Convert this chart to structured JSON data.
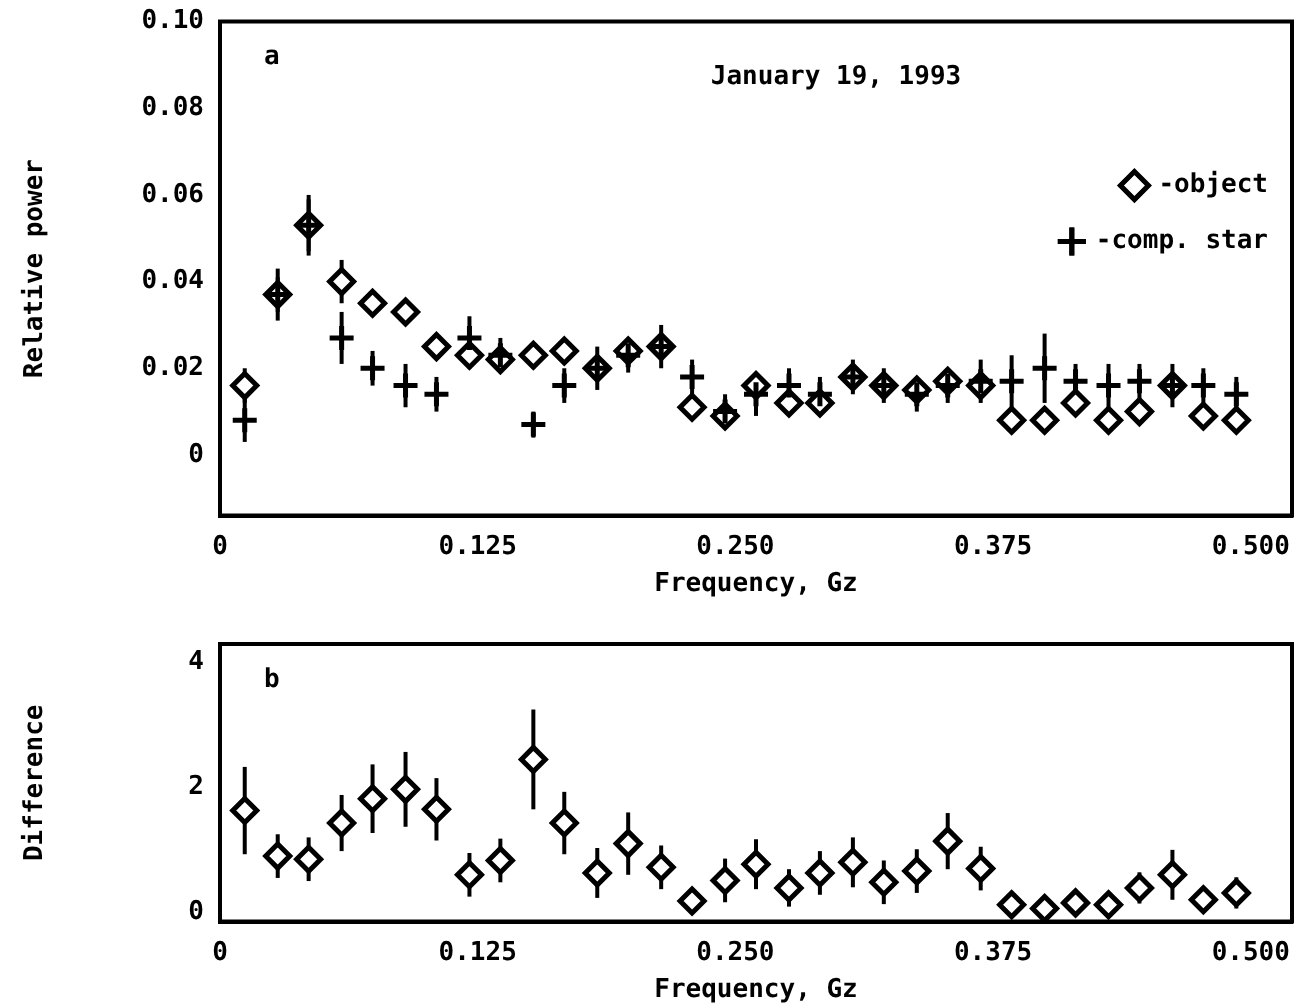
{
  "chart_data": [
    {
      "type": "scatter",
      "title": "January 19, 1993",
      "xlabel": "Frequency, Gz",
      "ylabel": "Relative power",
      "annotations": [
        "a"
      ],
      "legend": "top right",
      "grid": false,
      "x": [
        0.012,
        0.028,
        0.043,
        0.059,
        0.074,
        0.09,
        0.105,
        0.121,
        0.136,
        0.152,
        0.167,
        0.183,
        0.198,
        0.214,
        0.229,
        0.245,
        0.26,
        0.276,
        0.291,
        0.307,
        0.322,
        0.338,
        0.353,
        0.369,
        0.384,
        0.4,
        0.415,
        0.431,
        0.446,
        0.462,
        0.477,
        0.493
      ],
      "xlim": [
        0,
        0.52
      ],
      "xticks": [
        0,
        {
          "value": 0.125,
          "label": "0.125"
        },
        {
          "value": 0.25,
          "label": "0.250"
        },
        {
          "value": 0.375,
          "label": "0.375"
        },
        {
          "value": 0.5,
          "label": "0.500"
        }
      ],
      "ylim": [
        -0.014,
        0.1
      ],
      "yticks": [
        0,
        0.02,
        0.04,
        0.06,
        0.08,
        {
          "value": 0.1,
          "label": "0.10"
        }
      ],
      "series": [
        {
          "name": "-object",
          "color": "#000000",
          "marker": "diamond",
          "values": [
            0.016,
            0.037,
            0.053,
            0.04,
            0.035,
            0.033,
            0.025,
            0.023,
            0.022,
            0.023,
            0.024,
            0.02,
            0.024,
            0.025,
            0.011,
            0.009,
            0.016,
            0.012,
            0.012,
            0.018,
            0.016,
            0.015,
            0.017,
            0.016,
            0.008,
            0.008,
            0.012,
            0.008,
            0.01,
            0.016,
            0.009,
            0.008
          ],
          "errors": [
            0.004,
            0.004,
            0.006,
            0.005,
            0.003,
            0.003,
            0.003,
            0.003,
            0.003,
            0.003,
            0.003,
            0.003,
            0.003,
            0.003,
            0.003,
            0.003,
            0.003,
            0.003,
            0.003,
            0.003,
            0.003,
            0.003,
            0.003,
            0.003,
            0.002,
            0.002,
            0.002,
            0.002,
            0.002,
            0.002,
            0.002,
            0.002
          ]
        },
        {
          "name": "-comp. star",
          "color": "#000000",
          "marker": "cross",
          "values": [
            0.008,
            0.037,
            0.053,
            0.027,
            0.02,
            0.016,
            0.014,
            0.027,
            0.023,
            0.007,
            0.016,
            0.02,
            0.023,
            0.025,
            0.018,
            0.01,
            0.014,
            0.016,
            0.014,
            0.018,
            0.016,
            0.014,
            0.016,
            0.017,
            0.017,
            0.02,
            0.017,
            0.016,
            0.017,
            0.016,
            0.016,
            0.014
          ],
          "errors": [
            0.005,
            0.006,
            0.007,
            0.006,
            0.004,
            0.005,
            0.004,
            0.005,
            0.004,
            0.003,
            0.004,
            0.005,
            0.004,
            0.005,
            0.004,
            0.004,
            0.005,
            0.004,
            0.004,
            0.004,
            0.004,
            0.004,
            0.004,
            0.005,
            0.006,
            0.008,
            0.004,
            0.005,
            0.004,
            0.005,
            0.004,
            0.004
          ]
        }
      ]
    },
    {
      "type": "scatter",
      "xlabel": "Frequency, Gz",
      "ylabel": "Difference",
      "annotations": [
        "b"
      ],
      "grid": false,
      "marker": "diamond",
      "x": [
        0.012,
        0.028,
        0.043,
        0.059,
        0.074,
        0.09,
        0.105,
        0.121,
        0.136,
        0.152,
        0.167,
        0.183,
        0.198,
        0.214,
        0.229,
        0.245,
        0.26,
        0.276,
        0.291,
        0.307,
        0.322,
        0.338,
        0.353,
        0.369,
        0.384,
        0.4,
        0.415,
        0.431,
        0.446,
        0.462,
        0.477,
        0.493
      ],
      "xlim": [
        0,
        0.52
      ],
      "xticks": [
        0,
        {
          "value": 0.125,
          "label": "0.125"
        },
        {
          "value": 0.25,
          "label": "0.250"
        },
        {
          "value": 0.375,
          "label": "0.375"
        },
        {
          "value": 0.5,
          "label": "0.500"
        }
      ],
      "ylim": [
        -0.15,
        4.3
      ],
      "yticks": [
        0,
        2,
        4
      ],
      "series": [
        {
          "color": "#000000",
          "values": [
            1.63,
            0.9,
            0.85,
            1.43,
            1.82,
            1.97,
            1.65,
            0.6,
            0.83,
            2.45,
            1.43,
            0.63,
            1.1,
            0.72,
            0.18,
            0.51,
            0.77,
            0.39,
            0.63,
            0.8,
            0.48,
            0.66,
            1.14,
            0.7,
            0.12,
            0.06,
            0.15,
            0.12,
            0.39,
            0.6,
            0.2,
            0.31
          ],
          "errors": [
            0.7,
            0.35,
            0.35,
            0.45,
            0.55,
            0.6,
            0.5,
            0.35,
            0.35,
            0.8,
            0.5,
            0.4,
            0.5,
            0.35,
            0.2,
            0.35,
            0.4,
            0.3,
            0.35,
            0.4,
            0.35,
            0.35,
            0.45,
            0.35,
            0.2,
            0.15,
            0.2,
            0.2,
            0.25,
            0.4,
            0.2,
            0.25
          ]
        }
      ]
    }
  ]
}
